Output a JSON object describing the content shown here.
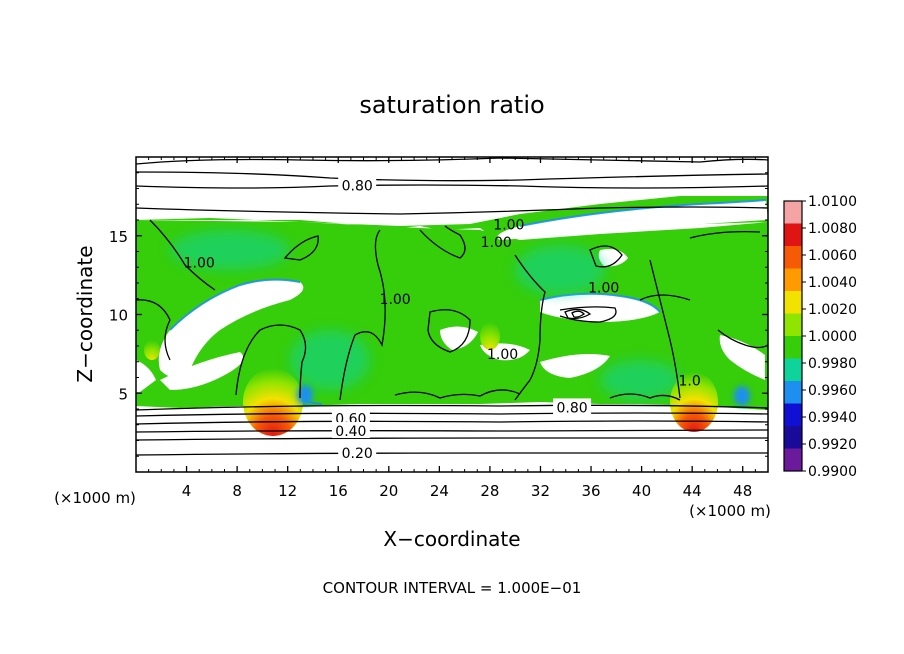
{
  "chart_data": {
    "type": "heatmap",
    "title": "saturation ratio",
    "xlabel": "X−coordinate",
    "ylabel": "Z−coordinate",
    "x_unit_label": "(×1000 m)",
    "y_unit_label": "(×1000 m)",
    "xlim": [
      0,
      50
    ],
    "ylim": [
      0,
      20
    ],
    "x_ticks": [
      4,
      8,
      12,
      16,
      20,
      24,
      28,
      32,
      36,
      40,
      44,
      48
    ],
    "y_ticks": [
      5,
      10,
      15
    ],
    "footer": "CONTOUR INTERVAL = 1.000E−01",
    "colorbar": {
      "levels": [
        "1.0100",
        "1.0080",
        "1.0060",
        "1.0040",
        "1.0020",
        "1.0000",
        "0.9980",
        "0.9960",
        "0.9940",
        "0.9920",
        "0.9900"
      ],
      "colors": [
        "#f4a4a4",
        "#e11414",
        "#f75a05",
        "#ff9a00",
        "#f2e200",
        "#8fe400",
        "#36cd0a",
        "#0ed49c",
        "#1c8ff0",
        "#1010d4",
        "#1a0a9a",
        "#6a1a9a"
      ]
    },
    "contour_labels": [
      {
        "text": "0.80",
        "x": 17.5,
        "y": 18.2
      },
      {
        "text": "1.00",
        "x": 29.5,
        "y": 15.7
      },
      {
        "text": "1.00",
        "x": 28.5,
        "y": 14.6
      },
      {
        "text": "1.00",
        "x": 5.0,
        "y": 13.3
      },
      {
        "text": "1.00",
        "x": 20.5,
        "y": 11.0
      },
      {
        "text": "1.00",
        "x": 37.0,
        "y": 11.7
      },
      {
        "text": "1.00",
        "x": 29.0,
        "y": 7.5
      },
      {
        "text": "1.0",
        "x": 43.8,
        "y": 5.8
      },
      {
        "text": "0.80",
        "x": 34.5,
        "y": 4.1
      },
      {
        "text": "0.60",
        "x": 17.0,
        "y": 3.4
      },
      {
        "text": "0.40",
        "x": 17.0,
        "y": 2.6
      },
      {
        "text": "0.20",
        "x": 17.5,
        "y": 1.2
      }
    ],
    "hotspots": [
      {
        "x": 10.5,
        "y": 4.6,
        "max": 1.01
      },
      {
        "x": 44.2,
        "y": 4.8,
        "max": 1.009
      },
      {
        "x": 28.0,
        "y": 8.5,
        "max": 1.004
      },
      {
        "x": 2.0,
        "y": 7.5,
        "max": 1.005
      }
    ]
  }
}
